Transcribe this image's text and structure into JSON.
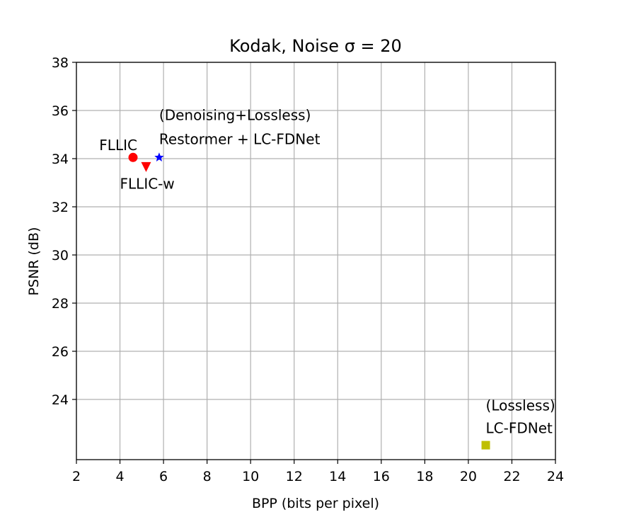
{
  "chart_data": {
    "type": "scatter",
    "title": "Kodak, Noise σ = 20",
    "xlabel": "BPP (bits per pixel)",
    "ylabel": "PSNR (dB)",
    "xlim": [
      2,
      24
    ],
    "ylim": [
      21.5,
      38
    ],
    "xticks": [
      2,
      4,
      6,
      8,
      10,
      12,
      14,
      16,
      18,
      20,
      22,
      24
    ],
    "yticks": [
      24,
      26,
      28,
      30,
      32,
      34,
      36,
      38
    ],
    "grid": true,
    "points": [
      {
        "name": "FLLIC",
        "x": 4.6,
        "y": 34.05,
        "marker": "circle",
        "color": "#ff0000"
      },
      {
        "name": "FLLIC-w",
        "x": 5.2,
        "y": 33.65,
        "marker": "triangle-down",
        "color": "#ff0000"
      },
      {
        "name": "Restormer + LC-FDNet",
        "x": 5.8,
        "y": 34.05,
        "marker": "star",
        "color": "#0000ff"
      },
      {
        "name": "LC-FDNet",
        "x": 20.8,
        "y": 22.1,
        "marker": "square",
        "color": "#bfbf00"
      }
    ],
    "annotations": [
      {
        "text": "FLLIC",
        "x": 3.05,
        "y": 34.35
      },
      {
        "text": "FLLIC-w",
        "x": 4.0,
        "y": 32.75
      },
      {
        "text": "(Denoising+Lossless)",
        "x": 5.8,
        "y": 35.6
      },
      {
        "text": "Restormer + LC-FDNet",
        "x": 5.8,
        "y": 34.6
      },
      {
        "text": "(Lossless)",
        "x": 20.8,
        "y": 23.55
      },
      {
        "text": "LC-FDNet",
        "x": 20.8,
        "y": 22.6
      }
    ]
  }
}
